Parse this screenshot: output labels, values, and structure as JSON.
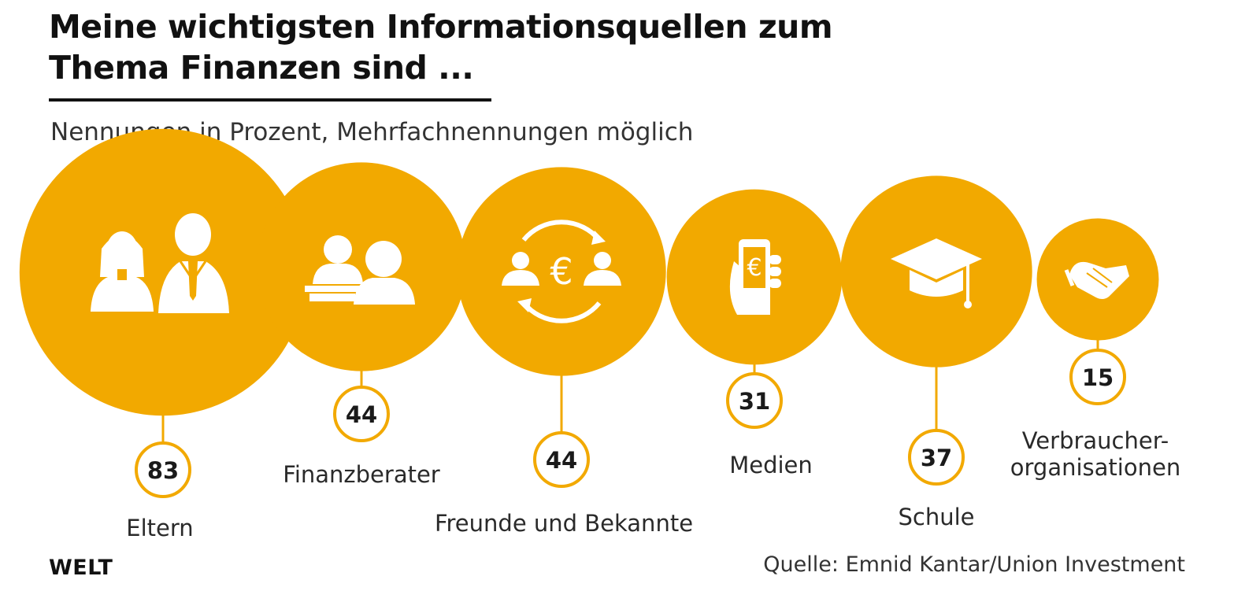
{
  "title_line1": "Meine wichtigsten Informationsquellen zum",
  "title_line2": "Thema Finanzen sind ...",
  "subtitle": "Nennungen in Prozent, Mehrfachnennungen möglich",
  "logo": "WELT",
  "source": "Quelle: Emnid Kantar/Union Investment",
  "colors": {
    "accent": "#F2A900",
    "badge_border": "#F2A900",
    "text": "#1a1a1a",
    "icon": "#ffffff"
  },
  "chart_data": {
    "type": "bubble",
    "unit": "Prozent",
    "categories": [
      "Eltern",
      "Finanzberater",
      "Freunde und Bekannte",
      "Medien",
      "Schule",
      "Verbraucher-\norganisationen"
    ],
    "values": [
      83,
      44,
      44,
      31,
      37,
      15
    ],
    "icons": [
      "parents-icon",
      "advisor-icon",
      "friends-euro-icon",
      "phone-euro-icon",
      "graduation-cap-icon",
      "handshake-icon"
    ]
  }
}
